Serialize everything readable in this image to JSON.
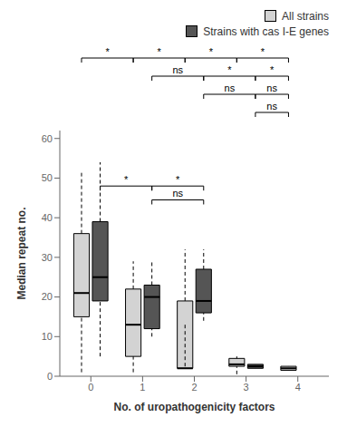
{
  "chart_data": {
    "type": "box",
    "xlabel": "No. of uropathogenicity factors",
    "ylabel": "Median repeat no.",
    "x": [
      0,
      1,
      2,
      3,
      4
    ],
    "xlim": [
      -0.6,
      4.6
    ],
    "xticks": [
      0,
      1,
      2,
      3,
      4
    ],
    "ylim": [
      0,
      62
    ],
    "yticks": [
      0,
      10,
      20,
      30,
      40,
      50,
      60
    ],
    "legend": "upper right",
    "series": [
      {
        "name": "All strains",
        "color": "#d3d3d3",
        "values": [
          {
            "q1": 15,
            "median": 21,
            "q3": 36,
            "whislo": 1,
            "whishi": 52
          },
          {
            "q1": 5,
            "median": 13,
            "q3": 22,
            "whislo": 1,
            "whishi": 29
          },
          {
            "q1": 2,
            "median": 2,
            "q3": 19,
            "whislo": 13,
            "whishi": 32
          },
          {
            "q1": 2.5,
            "median": 3,
            "q3": 4.5,
            "whislo": 0.5,
            "whishi": 5
          },
          {
            "q1": 1.5,
            "median": 2,
            "q3": 2.5,
            "whislo": 1.5,
            "whishi": 2.5
          }
        ]
      },
      {
        "name": "Strains with cas I-E genes",
        "color": "#555555",
        "values": [
          {
            "q1": 19,
            "median": 25,
            "q3": 39,
            "whislo": 5,
            "whishi": 54
          },
          {
            "q1": 12,
            "median": 20,
            "q3": 23,
            "whislo": 10,
            "whishi": 29
          },
          {
            "q1": 16,
            "median": 19,
            "q3": 27,
            "whislo": 14,
            "whishi": 32
          },
          {
            "q1": 2,
            "median": 2.5,
            "q3": 3,
            "whislo": 2,
            "whishi": 3
          },
          null
        ]
      }
    ],
    "annotations": [
      {
        "type": "bracket",
        "points": [
          {
            "x": 0,
            "series": "All strains"
          },
          {
            "x": 1,
            "series": "All strains"
          },
          {
            "x": 2,
            "series": "All strains"
          },
          {
            "x": 3,
            "series": "All strains"
          },
          {
            "x": 4,
            "series": "All strains"
          }
        ],
        "labels": [
          "*",
          "*",
          "*",
          "*"
        ]
      },
      {
        "type": "bracket",
        "points": [
          {
            "x": 1,
            "series": "Strains with cas I-E genes"
          },
          {
            "x": 2,
            "series": "Strains with cas I-E genes"
          },
          {
            "x": 3,
            "series": "Strains with cas I-E genes"
          },
          {
            "x": 4,
            "series": "All strains"
          }
        ],
        "labels": [
          "ns",
          "*",
          "*"
        ]
      },
      {
        "type": "bracket",
        "points": [
          {
            "x": 2,
            "series": "Strains with cas I-E genes"
          },
          {
            "x": 3,
            "series": "Strains with cas I-E genes"
          },
          {
            "x": 4,
            "series": "All strains"
          }
        ],
        "labels": [
          "ns",
          "ns"
        ]
      },
      {
        "type": "bracket",
        "points": [
          {
            "x": 3,
            "series": "Strains with cas I-E genes"
          },
          {
            "x": 4,
            "series": "All strains"
          }
        ],
        "labels": [
          "ns"
        ]
      },
      {
        "type": "bracket",
        "y": 48,
        "points": [
          {
            "x": 0,
            "series": "Strains with cas I-E genes"
          },
          {
            "x": 1,
            "series": "Strains with cas I-E genes"
          },
          {
            "x": 2,
            "series": "Strains with cas I-E genes"
          }
        ],
        "labels": [
          "*",
          "*"
        ]
      },
      {
        "type": "bracket",
        "y": 44.5,
        "points": [
          {
            "x": 1,
            "series": "Strains with cas I-E genes"
          },
          {
            "x": 2,
            "series": "Strains with cas I-E genes"
          }
        ],
        "labels": [
          "ns"
        ]
      }
    ]
  }
}
